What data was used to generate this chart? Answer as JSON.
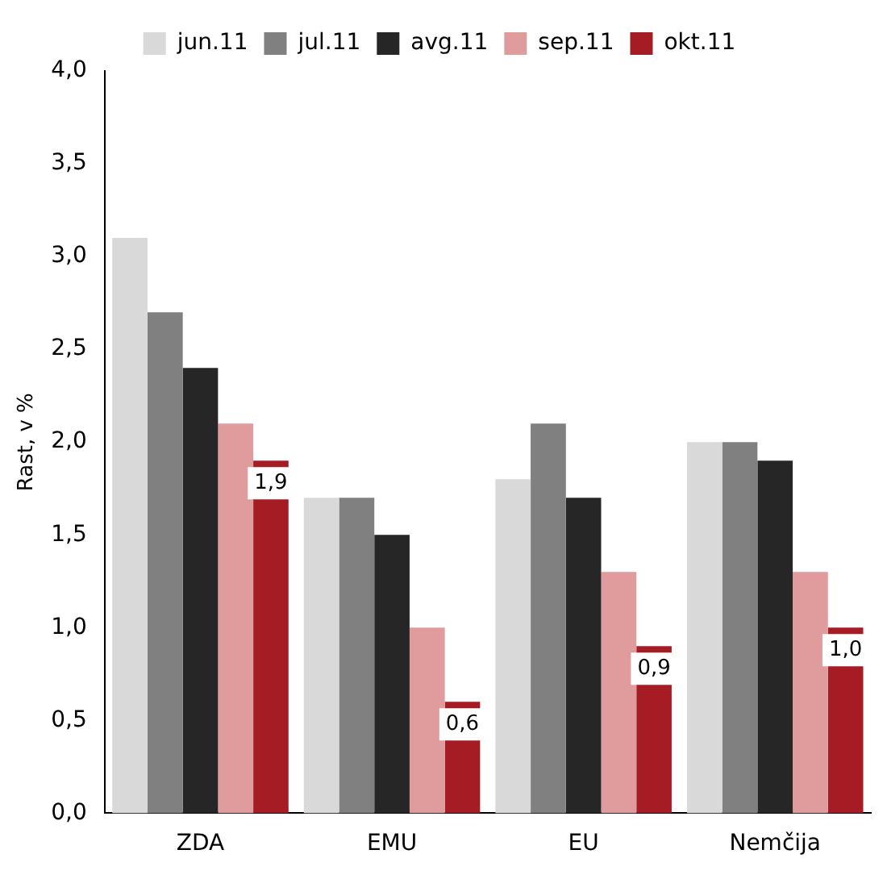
{
  "chart_data": {
    "type": "bar",
    "ylabel": "Rast, v %",
    "categories": [
      "ZDA",
      "EMU",
      "EU",
      "Nemčija"
    ],
    "series": [
      {
        "name": "jun.11",
        "color": "#d9d9d9",
        "values": [
          3.1,
          1.7,
          1.8,
          2.0
        ]
      },
      {
        "name": "jul.11",
        "color": "#808080",
        "values": [
          2.7,
          1.7,
          2.1,
          2.0
        ]
      },
      {
        "name": "avg.11",
        "color": "#262626",
        "values": [
          2.4,
          1.5,
          1.7,
          1.9
        ]
      },
      {
        "name": "sep.11",
        "color": "#e09c9c",
        "values": [
          2.1,
          1.0,
          1.3,
          1.3
        ]
      },
      {
        "name": "okt.11",
        "color": "#a51c24",
        "values": [
          1.9,
          0.6,
          0.9,
          1.0
        ],
        "value_labels": [
          "1,9",
          "0,6",
          "0,9",
          "1,0"
        ]
      }
    ],
    "ylim": [
      0,
      4
    ],
    "yticks": [
      {
        "value": 0,
        "label": "0,0"
      },
      {
        "value": 0.5,
        "label": "0,5"
      },
      {
        "value": 1,
        "label": "1,0"
      },
      {
        "value": 1.5,
        "label": "1,5"
      },
      {
        "value": 2,
        "label": "2,0"
      },
      {
        "value": 2.5,
        "label": "2,5"
      },
      {
        "value": 3,
        "label": "3,0"
      },
      {
        "value": 3.5,
        "label": "3,5"
      },
      {
        "value": 4,
        "label": "4,0"
      }
    ],
    "grid": false,
    "legend": "top"
  }
}
